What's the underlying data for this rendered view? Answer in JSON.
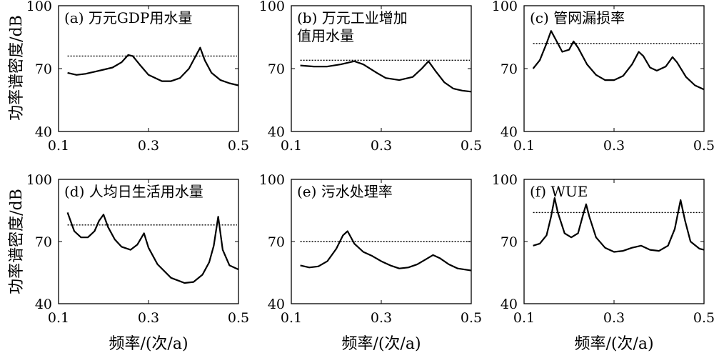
{
  "figure": {
    "ylabel": "功率谱密度/dB",
    "xlabel": "频率/(次/a)"
  },
  "chart_data": [
    {
      "type": "line",
      "label": "(a) 万元GDP用水量",
      "xlim": [
        0.1,
        0.5
      ],
      "ylim": [
        40,
        100
      ],
      "xticks": [
        "0.1",
        "0.3",
        "0.5"
      ],
      "yticks": [
        "40",
        "70",
        "100"
      ],
      "threshold": 76,
      "points": [
        [
          0.12,
          68
        ],
        [
          0.14,
          67
        ],
        [
          0.16,
          67.5
        ],
        [
          0.18,
          68.5
        ],
        [
          0.2,
          69.5
        ],
        [
          0.22,
          70.5
        ],
        [
          0.24,
          73
        ],
        [
          0.255,
          76.5
        ],
        [
          0.265,
          76
        ],
        [
          0.28,
          72
        ],
        [
          0.3,
          67
        ],
        [
          0.33,
          64
        ],
        [
          0.35,
          64
        ],
        [
          0.37,
          65.5
        ],
        [
          0.39,
          70
        ],
        [
          0.405,
          76
        ],
        [
          0.415,
          80
        ],
        [
          0.425,
          74
        ],
        [
          0.44,
          68
        ],
        [
          0.46,
          64.5
        ],
        [
          0.48,
          63
        ],
        [
          0.5,
          62
        ]
      ]
    },
    {
      "type": "line",
      "label": "(b) 万元工业增加\n值用水量",
      "xlim": [
        0.1,
        0.5
      ],
      "ylim": [
        40,
        100
      ],
      "xticks": [
        "0.1",
        "0.3",
        "0.5"
      ],
      "yticks": [
        "40",
        "70",
        "100"
      ],
      "threshold": 74,
      "points": [
        [
          0.12,
          71.5
        ],
        [
          0.15,
          71
        ],
        [
          0.18,
          71
        ],
        [
          0.21,
          72
        ],
        [
          0.24,
          73.5
        ],
        [
          0.26,
          72
        ],
        [
          0.29,
          68
        ],
        [
          0.31,
          65.5
        ],
        [
          0.34,
          64.5
        ],
        [
          0.37,
          66
        ],
        [
          0.39,
          70
        ],
        [
          0.405,
          73.5
        ],
        [
          0.42,
          69
        ],
        [
          0.44,
          63.5
        ],
        [
          0.46,
          60.5
        ],
        [
          0.48,
          59.5
        ],
        [
          0.5,
          59
        ]
      ]
    },
    {
      "type": "line",
      "label": "(c) 管网漏损率",
      "xlim": [
        0.1,
        0.5
      ],
      "ylim": [
        40,
        100
      ],
      "xticks": [
        "0.1",
        "0.3",
        "0.5"
      ],
      "yticks": [
        "40",
        "70",
        "100"
      ],
      "threshold": 82,
      "points": [
        [
          0.12,
          70
        ],
        [
          0.135,
          74
        ],
        [
          0.15,
          82
        ],
        [
          0.16,
          88
        ],
        [
          0.17,
          84
        ],
        [
          0.185,
          78
        ],
        [
          0.2,
          79
        ],
        [
          0.21,
          83
        ],
        [
          0.22,
          80
        ],
        [
          0.24,
          72
        ],
        [
          0.26,
          67
        ],
        [
          0.28,
          64.5
        ],
        [
          0.3,
          64.5
        ],
        [
          0.32,
          66.5
        ],
        [
          0.34,
          72
        ],
        [
          0.355,
          78
        ],
        [
          0.365,
          76
        ],
        [
          0.38,
          70.5
        ],
        [
          0.395,
          69
        ],
        [
          0.415,
          71
        ],
        [
          0.43,
          75.5
        ],
        [
          0.44,
          73
        ],
        [
          0.46,
          66
        ],
        [
          0.48,
          62
        ],
        [
          0.5,
          60
        ]
      ]
    },
    {
      "type": "line",
      "label": "(d) 人均日生活用水量",
      "xlim": [
        0.1,
        0.5
      ],
      "ylim": [
        40,
        100
      ],
      "xticks": [
        "0.1",
        "0.3",
        "0.5"
      ],
      "yticks": [
        "40",
        "70",
        "100"
      ],
      "threshold": 78,
      "points": [
        [
          0.12,
          84
        ],
        [
          0.135,
          75
        ],
        [
          0.15,
          72
        ],
        [
          0.165,
          72
        ],
        [
          0.18,
          75
        ],
        [
          0.19,
          80
        ],
        [
          0.2,
          83
        ],
        [
          0.21,
          77
        ],
        [
          0.225,
          71
        ],
        [
          0.24,
          67.5
        ],
        [
          0.26,
          66
        ],
        [
          0.275,
          68.5
        ],
        [
          0.29,
          74
        ],
        [
          0.3,
          67
        ],
        [
          0.32,
          59
        ],
        [
          0.35,
          52.5
        ],
        [
          0.38,
          50
        ],
        [
          0.4,
          50.5
        ],
        [
          0.42,
          54
        ],
        [
          0.435,
          60
        ],
        [
          0.445,
          68
        ],
        [
          0.455,
          82
        ],
        [
          0.465,
          66
        ],
        [
          0.48,
          58.5
        ],
        [
          0.5,
          56.5
        ]
      ]
    },
    {
      "type": "line",
      "label": "(e) 污水处理率",
      "xlim": [
        0.1,
        0.5
      ],
      "ylim": [
        40,
        100
      ],
      "xticks": [
        "0.1",
        "0.3",
        "0.5"
      ],
      "yticks": [
        "40",
        "70",
        "100"
      ],
      "threshold": 70,
      "points": [
        [
          0.12,
          58.5
        ],
        [
          0.14,
          57.5
        ],
        [
          0.16,
          58
        ],
        [
          0.18,
          60.5
        ],
        [
          0.2,
          66.5
        ],
        [
          0.215,
          73
        ],
        [
          0.225,
          75
        ],
        [
          0.24,
          69
        ],
        [
          0.26,
          65
        ],
        [
          0.28,
          63
        ],
        [
          0.3,
          60.5
        ],
        [
          0.32,
          58.5
        ],
        [
          0.34,
          57
        ],
        [
          0.36,
          57.5
        ],
        [
          0.38,
          59
        ],
        [
          0.4,
          61.5
        ],
        [
          0.415,
          63.5
        ],
        [
          0.43,
          62
        ],
        [
          0.45,
          59
        ],
        [
          0.47,
          57
        ],
        [
          0.5,
          56
        ]
      ]
    },
    {
      "type": "line",
      "label": "(f) WUE",
      "xlim": [
        0.1,
        0.5
      ],
      "ylim": [
        40,
        100
      ],
      "xticks": [
        "0.1",
        "0.3",
        "0.5"
      ],
      "yticks": [
        "40",
        "70",
        "100"
      ],
      "threshold": 84,
      "points": [
        [
          0.12,
          68
        ],
        [
          0.135,
          69
        ],
        [
          0.15,
          73
        ],
        [
          0.16,
          82
        ],
        [
          0.168,
          91
        ],
        [
          0.175,
          84
        ],
        [
          0.19,
          74
        ],
        [
          0.205,
          72
        ],
        [
          0.22,
          74
        ],
        [
          0.23,
          82
        ],
        [
          0.238,
          88
        ],
        [
          0.245,
          82
        ],
        [
          0.26,
          72
        ],
        [
          0.28,
          67
        ],
        [
          0.3,
          65
        ],
        [
          0.32,
          65.5
        ],
        [
          0.34,
          67
        ],
        [
          0.36,
          68
        ],
        [
          0.38,
          66
        ],
        [
          0.4,
          65.5
        ],
        [
          0.42,
          68
        ],
        [
          0.435,
          76
        ],
        [
          0.448,
          90
        ],
        [
          0.458,
          80
        ],
        [
          0.47,
          70
        ],
        [
          0.49,
          66.5
        ],
        [
          0.5,
          66
        ]
      ]
    }
  ]
}
